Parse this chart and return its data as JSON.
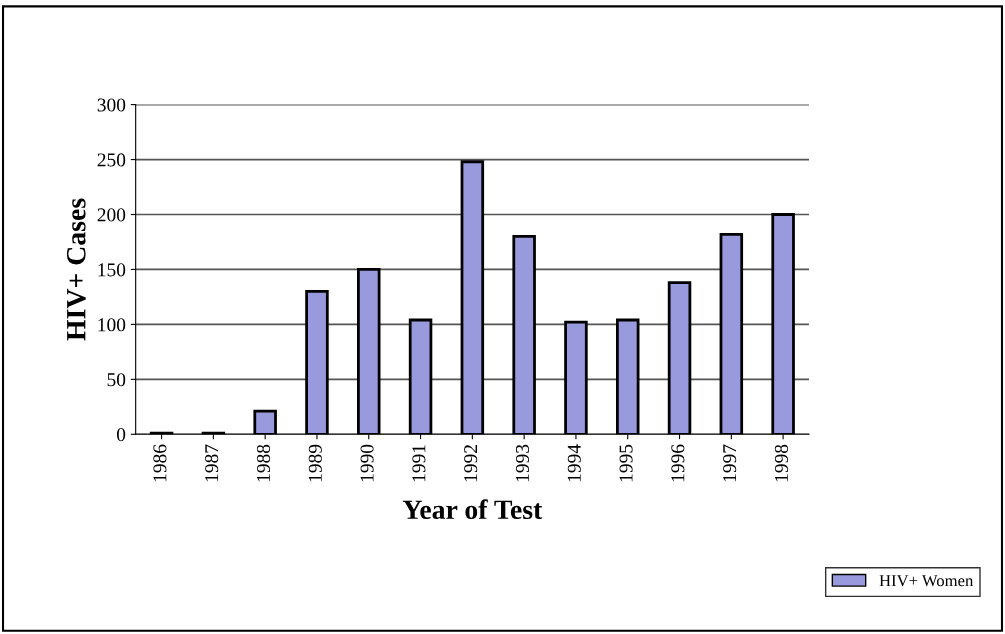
{
  "chart_data": {
    "type": "bar",
    "xlabel": "Year of Test",
    "ylabel": "HIV+ Cases",
    "categories": [
      "1986",
      "1987",
      "1988",
      "1989",
      "1990",
      "1991",
      "1992",
      "1993",
      "1994",
      "1995",
      "1996",
      "1997",
      "1998"
    ],
    "series": [
      {
        "name": "HIV+ Women",
        "color": "#9999dd",
        "values": [
          1,
          1,
          21,
          130,
          150,
          104,
          248,
          180,
          102,
          104,
          138,
          182,
          200
        ]
      }
    ],
    "ylim": [
      0,
      300
    ],
    "yticks": [
      0,
      50,
      100,
      150,
      200,
      250,
      300
    ],
    "grid": "y",
    "legend": "bottom right"
  }
}
